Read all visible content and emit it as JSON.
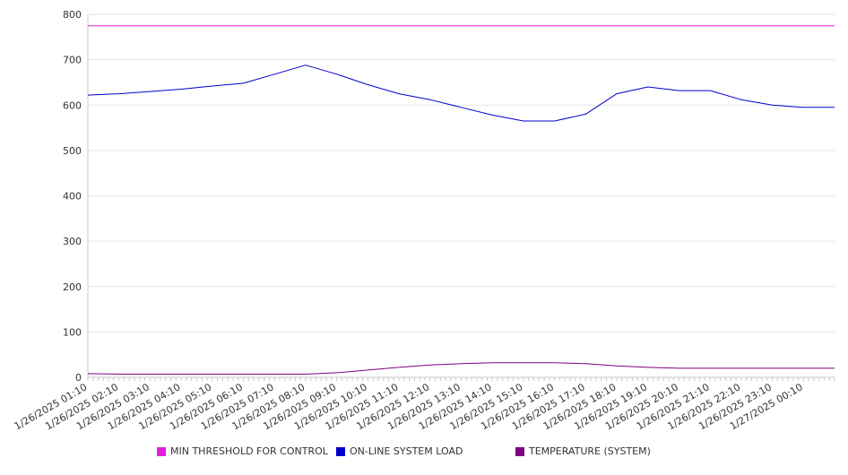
{
  "chart_data": {
    "type": "line",
    "title": "",
    "xlabel": "",
    "ylabel": "",
    "ylim": [
      0,
      800
    ],
    "yticks": [
      0,
      100,
      200,
      300,
      400,
      500,
      600,
      700,
      800
    ],
    "grid": true,
    "legend_position": "bottom",
    "x": [
      "1/26/2025 01:10",
      "1/26/2025 02:10",
      "1/26/2025 03:10",
      "1/26/2025 04:10",
      "1/26/2025 05:10",
      "1/26/2025 06:10",
      "1/26/2025 07:10",
      "1/26/2025 08:10",
      "1/26/2025 09:10",
      "1/26/2025 10:10",
      "1/26/2025 11:10",
      "1/26/2025 12:10",
      "1/26/2025 13:10",
      "1/26/2025 14:10",
      "1/26/2025 15:10",
      "1/26/2025 16:10",
      "1/26/2025 17:10",
      "1/26/2025 18:10",
      "1/26/2025 19:10",
      "1/26/2025 20:10",
      "1/26/2025 21:10",
      "1/26/2025 22:10",
      "1/26/2025 23:10",
      "1/27/2025 00:10"
    ],
    "series": [
      {
        "name": "MIN THRESHOLD FOR CONTROL",
        "color": "#e020e0",
        "values": [
          775,
          775,
          775,
          775,
          775,
          775,
          775,
          775,
          775,
          775,
          775,
          775,
          775,
          775,
          775,
          775,
          775,
          775,
          775,
          775,
          775,
          775,
          775,
          775
        ]
      },
      {
        "name": "ON-LINE SYSTEM LOAD",
        "color": "#0000cc",
        "values": [
          622,
          625,
          630,
          635,
          642,
          648,
          668,
          688,
          668,
          645,
          625,
          612,
          595,
          578,
          565,
          565,
          580,
          625,
          640,
          632,
          632,
          612,
          600,
          595
        ]
      },
      {
        "name": "TEMPERATURE (SYSTEM)",
        "color": "#800080",
        "values": [
          8,
          7,
          7,
          7,
          7,
          7,
          7,
          7,
          10,
          16,
          22,
          27,
          30,
          32,
          32,
          32,
          30,
          25,
          22,
          20,
          20,
          20,
          20,
          20
        ]
      }
    ]
  }
}
